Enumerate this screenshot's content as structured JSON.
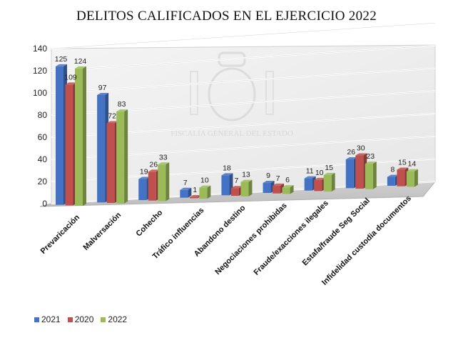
{
  "chart_data": {
    "type": "bar",
    "title": "DELITOS CALIFICADOS EN EL EJERCICIO 2022",
    "watermark": "FISCALÍA GENERAL DEL ESTADO",
    "categories": [
      "Prevaricación",
      "Malversación",
      "Cohecho",
      "Tráfico influencias",
      "Abandono destino",
      "Negociaciones prohibidas",
      "Fraude/exacciones ilegales",
      "Estafa/fraude Seg Social",
      "Infidelidad custodia documentos"
    ],
    "series": [
      {
        "name": "2021",
        "color": "#4472c4",
        "values": [
          125,
          97,
          19,
          7,
          18,
          9,
          11,
          26,
          8
        ]
      },
      {
        "name": "2020",
        "color": "#c0504d",
        "values": [
          109,
          72,
          26,
          1,
          7,
          7,
          10,
          30,
          15
        ]
      },
      {
        "name": "2022",
        "color": "#9bbb59",
        "values": [
          124,
          83,
          33,
          10,
          13,
          6,
          15,
          23,
          14
        ]
      }
    ],
    "ylim": [
      0,
      140
    ],
    "yticks": [
      "0",
      "20",
      "40",
      "60",
      "80",
      "100",
      "120",
      "140"
    ],
    "grid": true,
    "legend_position": "bottom-left"
  }
}
